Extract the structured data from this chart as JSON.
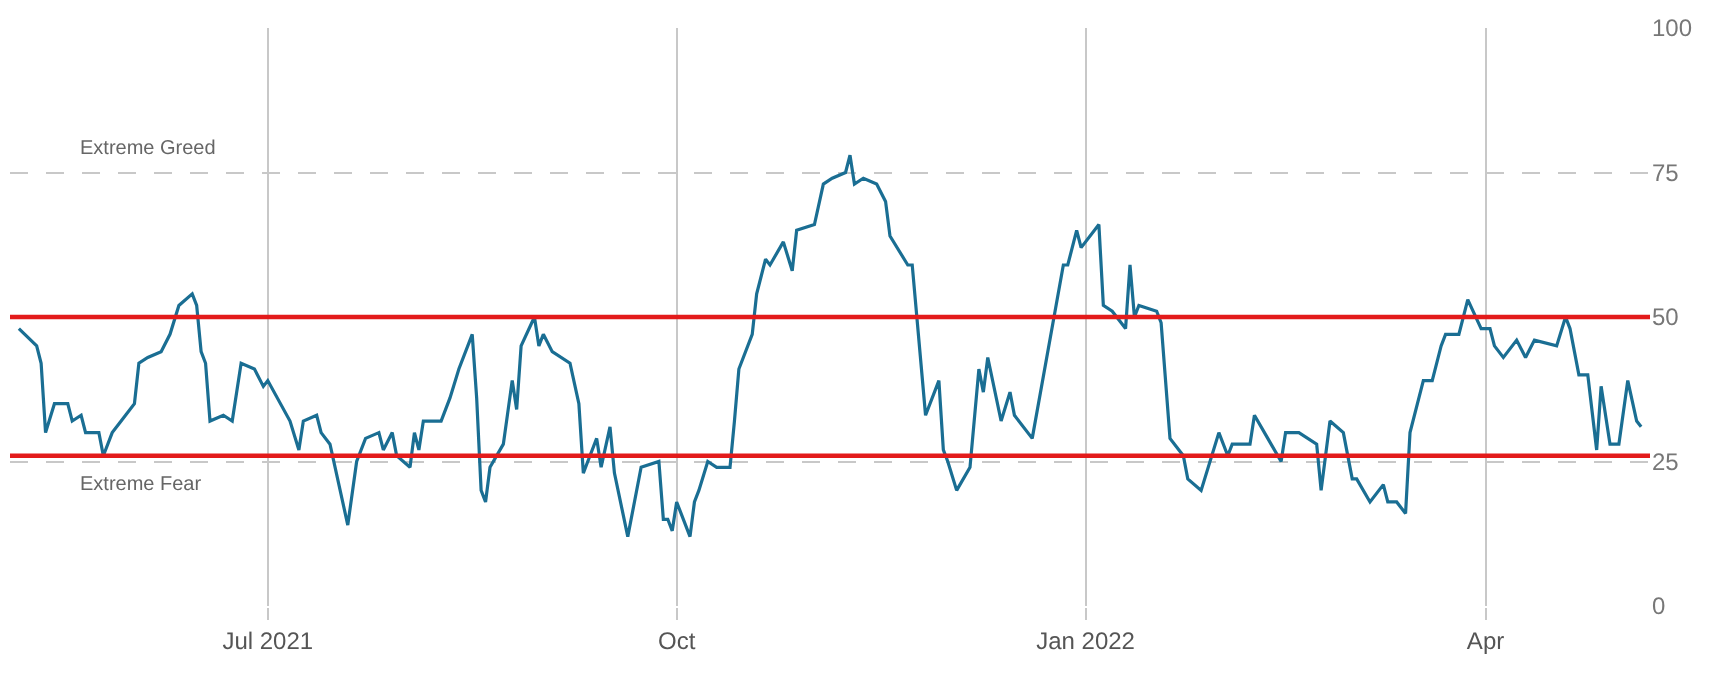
{
  "chart_data": {
    "type": "line",
    "x": [
      "2021-05-06",
      "2021-05-10",
      "2021-05-11",
      "2021-05-12",
      "2021-05-14",
      "2021-05-17",
      "2021-05-18",
      "2021-05-20",
      "2021-05-21",
      "2021-05-24",
      "2021-05-25",
      "2021-05-27",
      "2021-05-29",
      "2021-06-01",
      "2021-06-02",
      "2021-06-04",
      "2021-06-07",
      "2021-06-09",
      "2021-06-11",
      "2021-06-14",
      "2021-06-15",
      "2021-06-16",
      "2021-06-17",
      "2021-06-18",
      "2021-06-21",
      "2021-06-23",
      "2021-06-25",
      "2021-06-28",
      "2021-06-30",
      "2021-07-01",
      "2021-07-06",
      "2021-07-08",
      "2021-07-09",
      "2021-07-12",
      "2021-07-13",
      "2021-07-15",
      "2021-07-19",
      "2021-07-21",
      "2021-07-23",
      "2021-07-26",
      "2021-07-27",
      "2021-07-29",
      "2021-07-30",
      "2021-08-02",
      "2021-08-03",
      "2021-08-04",
      "2021-08-05",
      "2021-08-09",
      "2021-08-11",
      "2021-08-13",
      "2021-08-16",
      "2021-08-17",
      "2021-08-18",
      "2021-08-19",
      "2021-08-20",
      "2021-08-23",
      "2021-08-25",
      "2021-08-26",
      "2021-08-27",
      "2021-08-30",
      "2021-08-31",
      "2021-09-01",
      "2021-09-03",
      "2021-09-07",
      "2021-09-09",
      "2021-09-10",
      "2021-09-11",
      "2021-09-13",
      "2021-09-14",
      "2021-09-16",
      "2021-09-17",
      "2021-09-20",
      "2021-09-23",
      "2021-09-27",
      "2021-09-28",
      "2021-09-29",
      "2021-09-30",
      "2021-10-01",
      "2021-10-04",
      "2021-10-05",
      "2021-10-06",
      "2021-10-08",
      "2021-10-10",
      "2021-10-13",
      "2021-10-14",
      "2021-10-15",
      "2021-10-18",
      "2021-10-19",
      "2021-10-21",
      "2021-10-22",
      "2021-10-25",
      "2021-10-27",
      "2021-10-28",
      "2021-11-01",
      "2021-11-03",
      "2021-11-05",
      "2021-11-08",
      "2021-11-09",
      "2021-11-10",
      "2021-11-12",
      "2021-11-15",
      "2021-11-17",
      "2021-11-18",
      "2021-11-22",
      "2021-11-23",
      "2021-11-26",
      "2021-11-29",
      "2021-11-30",
      "2021-12-01",
      "2021-12-03",
      "2021-12-06",
      "2021-12-08",
      "2021-12-09",
      "2021-12-10",
      "2021-12-13",
      "2021-12-15",
      "2021-12-16",
      "2021-12-20",
      "2021-12-27",
      "2021-12-28",
      "2021-12-30",
      "2021-12-31",
      "2022-01-04",
      "2022-01-05",
      "2022-01-07",
      "2022-01-10",
      "2022-01-11",
      "2022-01-12",
      "2022-01-13",
      "2022-01-17",
      "2022-01-18",
      "2022-01-20",
      "2022-01-23",
      "2022-01-24",
      "2022-01-27",
      "2022-01-31",
      "2022-02-02",
      "2022-02-03",
      "2022-02-07",
      "2022-02-08",
      "2022-02-11",
      "2022-02-14",
      "2022-02-15",
      "2022-02-18",
      "2022-02-22",
      "2022-02-23",
      "2022-02-25",
      "2022-02-28",
      "2022-03-02",
      "2022-03-03",
      "2022-03-06",
      "2022-03-09",
      "2022-03-10",
      "2022-03-12",
      "2022-03-14",
      "2022-03-15",
      "2022-03-18",
      "2022-03-20",
      "2022-03-22",
      "2022-03-23",
      "2022-03-26",
      "2022-03-28",
      "2022-03-31",
      "2022-04-02",
      "2022-04-03",
      "2022-04-05",
      "2022-04-08",
      "2022-04-10",
      "2022-04-12",
      "2022-04-17",
      "2022-04-19",
      "2022-04-20",
      "2022-04-22",
      "2022-04-24",
      "2022-04-26",
      "2022-04-27",
      "2022-04-29",
      "2022-05-01",
      "2022-05-03",
      "2022-05-05",
      "2022-05-06"
    ],
    "series": [
      {
        "color": "#1a6e93",
        "values": [
          48,
          45,
          42,
          30,
          35,
          35,
          32,
          33,
          30,
          30,
          26,
          30,
          32,
          35,
          42,
          43,
          44,
          47,
          52,
          54,
          52,
          44,
          42,
          32,
          33,
          32,
          42,
          41,
          38,
          39,
          32,
          27,
          32,
          33,
          30,
          28,
          14,
          25,
          29,
          30,
          27,
          30,
          26,
          24,
          30,
          27,
          32,
          32,
          36,
          41,
          47,
          36,
          20,
          18,
          24,
          28,
          39,
          34,
          45,
          50,
          45,
          47,
          44,
          42,
          35,
          23,
          25,
          29,
          24,
          31,
          23,
          12,
          24,
          25,
          15,
          15,
          13,
          18,
          12,
          18,
          20,
          25,
          24,
          24,
          32,
          41,
          47,
          54,
          60,
          59,
          63,
          58,
          65,
          66,
          73,
          74,
          75,
          78,
          73,
          74,
          73,
          70,
          64,
          59,
          59,
          33,
          39,
          27,
          25,
          20,
          24,
          41,
          37,
          43,
          32,
          37,
          33,
          29,
          59,
          59,
          65,
          62,
          66,
          52,
          51,
          48,
          59,
          50,
          52,
          51,
          49,
          29,
          26,
          22,
          20,
          30,
          26,
          28,
          28,
          33,
          29,
          25,
          30,
          30,
          28,
          20,
          32,
          30,
          22,
          22,
          18,
          21,
          18,
          18,
          16,
          30,
          39,
          39,
          45,
          47,
          47,
          53,
          48,
          48,
          45,
          43,
          46,
          43,
          46,
          45,
          50,
          48,
          40,
          40,
          27,
          38,
          28,
          28,
          39,
          32,
          31
        ]
      }
    ],
    "xlim": [
      "2021-05-04",
      "2022-05-08"
    ],
    "xticks": [
      {
        "value": "2021-07-01",
        "label": "Jul 2021"
      },
      {
        "value": "2021-10-01",
        "label": "Oct"
      },
      {
        "value": "2022-01-01",
        "label": "Jan 2022"
      },
      {
        "value": "2022-04-01",
        "label": "Apr"
      }
    ],
    "ylim": [
      0,
      100
    ],
    "yticks": [
      0,
      25,
      50,
      75,
      100
    ],
    "grid": true,
    "marker": "none",
    "line_style": "solid",
    "ref_lines": [
      {
        "axis": "y",
        "value": 50,
        "color": "#e31b1b"
      },
      {
        "axis": "y",
        "value": 26,
        "color": "#e31b1b"
      }
    ],
    "annotations": [
      "Extreme Greed",
      "Extreme Fear"
    ]
  }
}
